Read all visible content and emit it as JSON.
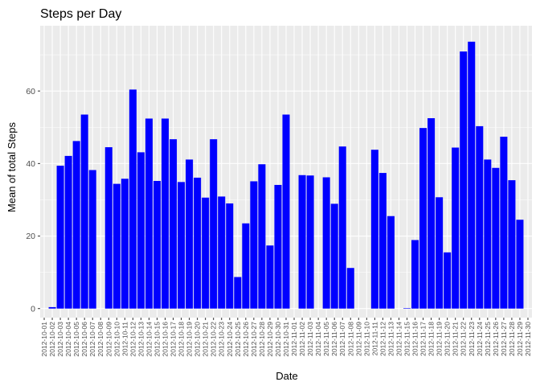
{
  "chart_data": {
    "type": "bar",
    "title": "Steps per Day",
    "xlabel": "Date",
    "ylabel": "Mean of total Steps",
    "ylim": [
      -2.5,
      78
    ],
    "yticks": [
      0,
      20,
      40,
      60
    ],
    "grid": true,
    "bar_color": "#0000FF",
    "panel_color": "#EBEBEB",
    "grid_color": "#FFFFFF",
    "categories": [
      "2012-10-01",
      "2012-10-02",
      "2012-10-03",
      "2012-10-04",
      "2012-10-05",
      "2012-10-06",
      "2012-10-07",
      "2012-10-08",
      "2012-10-09",
      "2012-10-10",
      "2012-10-11",
      "2012-10-12",
      "2012-10-13",
      "2012-10-14",
      "2012-10-15",
      "2012-10-16",
      "2012-10-17",
      "2012-10-18",
      "2012-10-19",
      "2012-10-20",
      "2012-10-21",
      "2012-10-22",
      "2012-10-23",
      "2012-10-24",
      "2012-10-25",
      "2012-10-26",
      "2012-10-27",
      "2012-10-28",
      "2012-10-29",
      "2012-10-30",
      "2012-10-31",
      "2012-11-01",
      "2012-11-02",
      "2012-11-03",
      "2012-11-04",
      "2012-11-05",
      "2012-11-06",
      "2012-11-07",
      "2012-11-08",
      "2012-11-09",
      "2012-11-10",
      "2012-11-11",
      "2012-11-12",
      "2012-11-13",
      "2012-11-14",
      "2012-11-15",
      "2012-11-16",
      "2012-11-17",
      "2012-11-18",
      "2012-11-19",
      "2012-11-20",
      "2012-11-21",
      "2012-11-22",
      "2012-11-23",
      "2012-11-24",
      "2012-11-25",
      "2012-11-26",
      "2012-11-27",
      "2012-11-28",
      "2012-11-29",
      "2012-11-30"
    ],
    "values": [
      null,
      0.4,
      39.4,
      42.1,
      46.2,
      53.5,
      38.2,
      null,
      44.5,
      34.4,
      35.8,
      60.4,
      43.1,
      52.4,
      35.2,
      52.4,
      46.7,
      34.9,
      41.1,
      36.1,
      30.6,
      46.7,
      30.9,
      29.0,
      8.7,
      23.5,
      35.1,
      39.8,
      17.4,
      34.1,
      53.5,
      null,
      36.8,
      36.7,
      null,
      36.2,
      28.9,
      44.7,
      11.2,
      null,
      null,
      43.8,
      37.4,
      25.5,
      null,
      0.1,
      18.9,
      49.8,
      52.5,
      30.7,
      15.5,
      44.4,
      70.9,
      73.6,
      50.3,
      41.1,
      38.8,
      47.4,
      35.4,
      24.5,
      null
    ]
  }
}
